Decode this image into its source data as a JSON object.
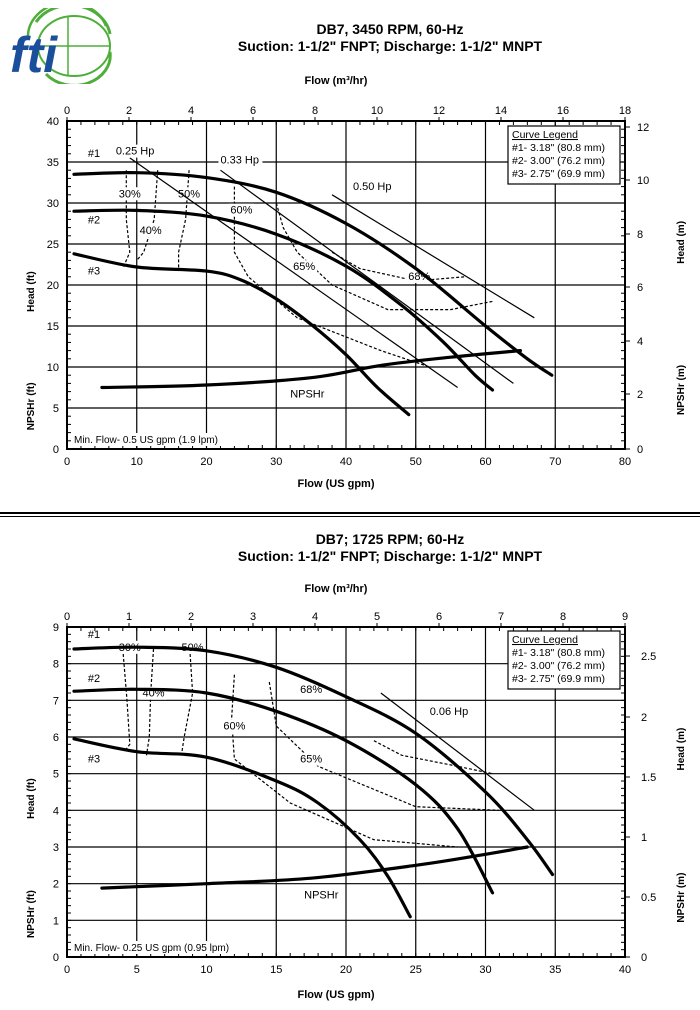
{
  "logo": {
    "text": "fti",
    "colors": {
      "globe": "#4fae3a",
      "letters": "#1b4f9c"
    }
  },
  "chart_data": [
    {
      "type": "line",
      "title": "DB7, 3450 RPM, 60-Hz",
      "subtitle": "Suction: 1-1/2\" FNPT; Discharge: 1-1/2\" MNPT",
      "xlabel": "Flow (US gpm)",
      "xlabel_top": "Flow (m³/hr)",
      "ylabel_left_top": "Head (ft)",
      "ylabel_left_bottom": "NPSHr (ft)",
      "ylabel_right_top": "Head (m)",
      "ylabel_right_bottom": "NPSHr (m)",
      "xlim": [
        0,
        80
      ],
      "ylim": [
        0,
        40
      ],
      "x_ticks": [
        "0",
        "10",
        "20",
        "30",
        "40",
        "50",
        "60",
        "70",
        "80"
      ],
      "y_ticks": [
        "0",
        "5",
        "10",
        "15",
        "20",
        "25",
        "30",
        "35",
        "40"
      ],
      "top_ticks": [
        "0",
        "2",
        "4",
        "6",
        "8",
        "10",
        "12",
        "14",
        "16",
        "18"
      ],
      "right_ticks": [
        "0",
        "2",
        "4",
        "6",
        "8",
        "10",
        "12"
      ],
      "grid": true,
      "legend": {
        "title": "Curve Legend",
        "entries": [
          "#1- 3.18\" (80.8 mm)",
          "#2- 3.00\" (76.2 mm)",
          "#3- 2.75\" (69.9 mm)"
        ],
        "placement": "top-right"
      },
      "series": [
        {
          "name": "#1",
          "label": "#1",
          "style": "heavy",
          "points": [
            [
              1,
              33.5
            ],
            [
              10,
              33.7
            ],
            [
              20,
              33.1
            ],
            [
              30,
              31.3
            ],
            [
              40,
              27.5
            ],
            [
              50,
              22
            ],
            [
              60,
              15
            ],
            [
              66,
              11
            ],
            [
              69.5,
              9
            ]
          ]
        },
        {
          "name": "#2",
          "label": "#2",
          "style": "heavy",
          "points": [
            [
              1,
              29
            ],
            [
              10,
              29.1
            ],
            [
              20,
              28.4
            ],
            [
              30,
              26.2
            ],
            [
              40,
              22.3
            ],
            [
              48,
              17.5
            ],
            [
              54,
              13
            ],
            [
              58.5,
              9
            ],
            [
              61,
              7.2
            ]
          ]
        },
        {
          "name": "#3",
          "label": "#3",
          "style": "heavy",
          "points": [
            [
              1,
              23.8
            ],
            [
              10,
              22.2
            ],
            [
              20,
              21.7
            ],
            [
              25,
              20.6
            ],
            [
              30,
              18.3
            ],
            [
              35,
              15.2
            ],
            [
              40,
              11.5
            ],
            [
              44.5,
              7.5
            ],
            [
              49,
              4.2
            ]
          ]
        },
        {
          "name": "NPSHr",
          "label": "NPSHr",
          "style": "heavy",
          "points": [
            [
              5,
              7.5
            ],
            [
              20,
              7.8
            ],
            [
              35,
              8.7
            ],
            [
              45,
              10.2
            ],
            [
              55,
              11.2
            ],
            [
              65,
              12
            ]
          ]
        }
      ],
      "power_lines": [
        {
          "label": "0.25 Hp",
          "points": [
            [
              9,
              35.5
            ],
            [
              56,
              7.5
            ]
          ]
        },
        {
          "label": "0.33 Hp",
          "points": [
            [
              22,
              34
            ],
            [
              64,
              8
            ]
          ]
        },
        {
          "label": "0.50 Hp",
          "points": [
            [
              38,
              31
            ],
            [
              67,
              16
            ]
          ]
        }
      ],
      "efficiency_labels": [
        "30%",
        "40%",
        "50%",
        "60%",
        "65%",
        "68%"
      ]
    },
    {
      "type": "line",
      "title": "DB7; 1725 RPM; 60-Hz",
      "subtitle": "Suction: 1-1/2\" FNPT; Discharge: 1-1/2\" MNPT",
      "xlabel": "Flow (US gpm)",
      "xlabel_top": "Flow (m³/hr)",
      "ylabel_left_top": "Head (ft)",
      "ylabel_left_bottom": "NPSHr (ft)",
      "ylabel_right_top": "Head (m)",
      "ylabel_right_bottom": "NPSHr (m)",
      "xlim": [
        0,
        40
      ],
      "ylim": [
        0,
        9
      ],
      "x_ticks": [
        "0",
        "5",
        "10",
        "15",
        "20",
        "25",
        "30",
        "35",
        "40"
      ],
      "y_ticks": [
        "0",
        "1",
        "2",
        "3",
        "4",
        "5",
        "6",
        "7",
        "8",
        "9"
      ],
      "top_ticks": [
        "0",
        "1",
        "2",
        "3",
        "4",
        "5",
        "6",
        "7",
        "8",
        "9"
      ],
      "right_ticks": [
        "0",
        "0.5",
        "1",
        "1.5",
        "2",
        "2.5"
      ],
      "grid": true,
      "legend": {
        "title": "Curve Legend",
        "entries": [
          "#1- 3.18\" (80.8 mm)",
          "#2- 3.00\" (76.2 mm)",
          "#3- 2.75\" (69.9 mm)"
        ],
        "placement": "top-right"
      },
      "series": [
        {
          "name": "#1",
          "label": "#1",
          "style": "heavy",
          "points": [
            [
              0.5,
              8.4
            ],
            [
              5,
              8.45
            ],
            [
              10,
              8.35
            ],
            [
              15,
              7.9
            ],
            [
              20,
              7.1
            ],
            [
              25,
              6.1
            ],
            [
              30,
              4.5
            ],
            [
              33,
              3.2
            ],
            [
              34.8,
              2.25
            ]
          ]
        },
        {
          "name": "#2",
          "label": "#2",
          "style": "heavy",
          "points": [
            [
              0.5,
              7.25
            ],
            [
              5,
              7.3
            ],
            [
              10,
              7.2
            ],
            [
              15,
              6.7
            ],
            [
              20,
              5.9
            ],
            [
              25,
              4.7
            ],
            [
              28,
              3.5
            ],
            [
              30.5,
              1.75
            ]
          ]
        },
        {
          "name": "#3",
          "label": "#3",
          "style": "heavy",
          "points": [
            [
              0.5,
              5.95
            ],
            [
              5,
              5.6
            ],
            [
              10,
              5.45
            ],
            [
              15,
              4.8
            ],
            [
              18,
              4.2
            ],
            [
              21,
              3.2
            ],
            [
              23,
              2.2
            ],
            [
              24.6,
              1.1
            ]
          ]
        },
        {
          "name": "NPSHr",
          "label": "NPSHr",
          "style": "heavy",
          "points": [
            [
              2.5,
              1.88
            ],
            [
              10,
              2.0
            ],
            [
              17.5,
              2.15
            ],
            [
              25,
              2.5
            ],
            [
              30,
              2.8
            ],
            [
              33,
              3.0
            ]
          ]
        }
      ],
      "power_lines": [
        {
          "label": "0.06 Hp",
          "points": [
            [
              22.5,
              7.2
            ],
            [
              33.5,
              4.0
            ]
          ]
        }
      ],
      "efficiency_labels": [
        "30%",
        "40%",
        "50%",
        "60%",
        "65%",
        "68%"
      ]
    }
  ],
  "footnotes": {
    "chart1_minflow": "Min. Flow- 0.5 US gpm (1.9 lpm)",
    "chart2_minflow": "Min. Flow- 0.25 US gpm (0.95 lpm)"
  }
}
